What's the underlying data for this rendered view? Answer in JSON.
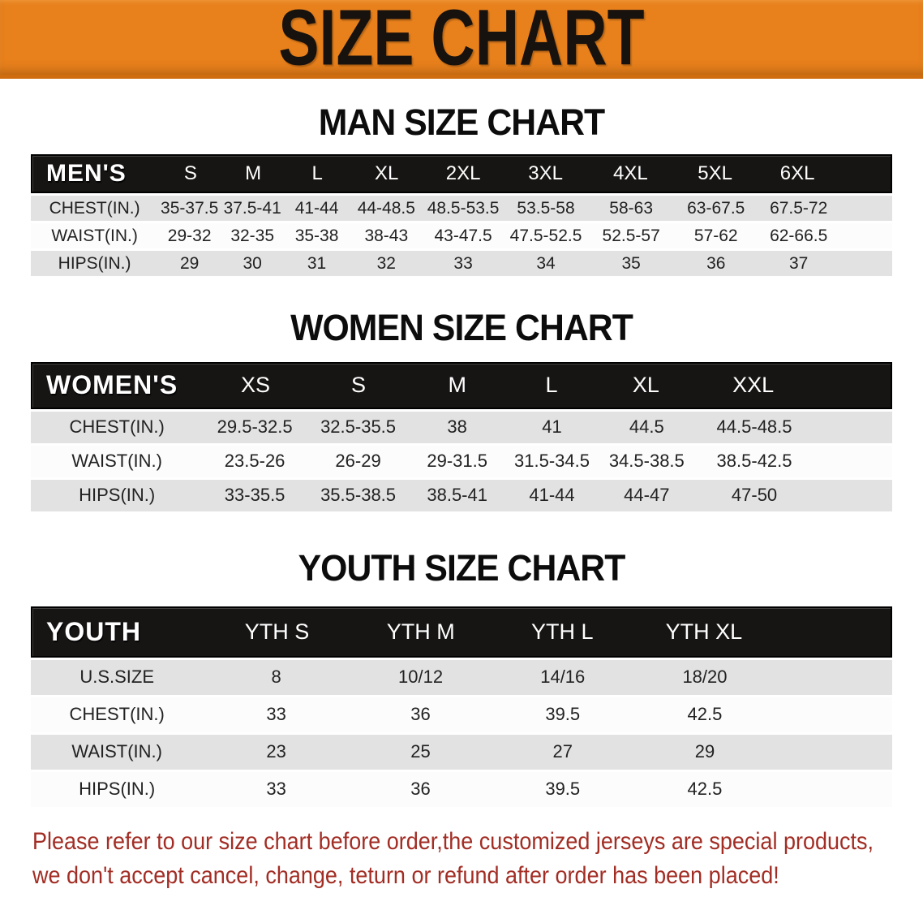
{
  "banner": {
    "title": "SIZE CHART"
  },
  "colors": {
    "banner_bg": "#e8811c",
    "banner_text": "#17120e",
    "header_bar_bg": "#171514",
    "header_bar_text": "#ffffff",
    "row_alt_bg": "#e3e2e2",
    "row_bg": "#fcfcfc",
    "disclaimer_text": "#a22d24"
  },
  "sections": [
    {
      "id": "men",
      "heading": "MAN SIZE CHART",
      "group_label": "MEN'S",
      "columns": [
        "S",
        "M",
        "L",
        "XL",
        "2XL",
        "3XL",
        "4XL",
        "5XL",
        "6XL"
      ],
      "rows": [
        {
          "label": "CHEST(IN.)",
          "values": [
            "35-37.5",
            "37.5-41",
            "41-44",
            "44-48.5",
            "48.5-53.5",
            "53.5-58",
            "58-63",
            "63-67.5",
            "67.5-72"
          ]
        },
        {
          "label": "WAIST(IN.)",
          "values": [
            "29-32",
            "32-35",
            "35-38",
            "38-43",
            "43-47.5",
            "47.5-52.5",
            "52.5-57",
            "57-62",
            "62-66.5"
          ]
        },
        {
          "label": "HIPS(IN.)",
          "values": [
            "29",
            "30",
            "31",
            "32",
            "33",
            "34",
            "35",
            "36",
            "37"
          ]
        }
      ]
    },
    {
      "id": "women",
      "heading": "WOMEN SIZE CHART",
      "group_label": "WOMEN'S",
      "columns": [
        "XS",
        "S",
        "M",
        "L",
        "XL",
        "XXL"
      ],
      "rows": [
        {
          "label": "CHEST(IN.)",
          "values": [
            "29.5-32.5",
            "32.5-35.5",
            "38",
            "41",
            "44.5",
            "44.5-48.5"
          ]
        },
        {
          "label": "WAIST(IN.)",
          "values": [
            "23.5-26",
            "26-29",
            "29-31.5",
            "31.5-34.5",
            "34.5-38.5",
            "38.5-42.5"
          ]
        },
        {
          "label": "HIPS(IN.)",
          "values": [
            "33-35.5",
            "35.5-38.5",
            "38.5-41",
            "41-44",
            "44-47",
            "47-50"
          ]
        }
      ]
    },
    {
      "id": "youth",
      "heading": "YOUTH SIZE CHART",
      "group_label": "YOUTH",
      "columns": [
        "YTH S",
        "YTH M",
        "YTH L",
        "YTH XL"
      ],
      "rows": [
        {
          "label": "U.S.SIZE",
          "values": [
            "8",
            "10/12",
            "14/16",
            "18/20"
          ]
        },
        {
          "label": "CHEST(IN.)",
          "values": [
            "33",
            "36",
            "39.5",
            "42.5"
          ]
        },
        {
          "label": "WAIST(IN.)",
          "values": [
            "23",
            "25",
            "27",
            "29"
          ]
        },
        {
          "label": "HIPS(IN.)",
          "values": [
            "33",
            "36",
            "39.5",
            "42.5"
          ]
        }
      ]
    }
  ],
  "disclaimer": {
    "lines": [
      "Please refer to our size chart before order,the customized jerseys are special products,",
      "we don't accept cancel, change, teturn or refund after order has been placed!"
    ]
  }
}
